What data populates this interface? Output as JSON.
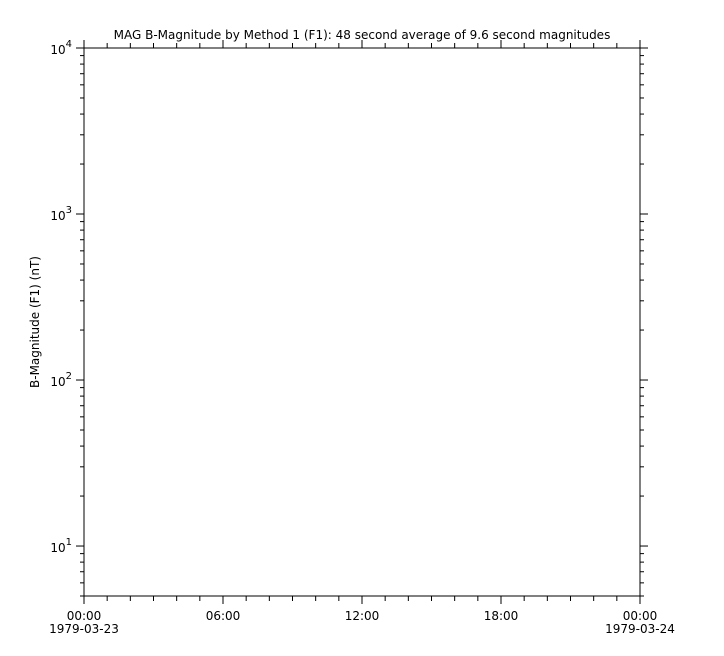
{
  "chart_data": {
    "type": "line",
    "title": "MAG  B-Magnitude by Method 1 (F1): 48 second average of 9.6 second magnitudes",
    "ylabel": "B-Magnitude (F1) (nT)",
    "xlabel": "",
    "yscale": "log",
    "ylim": [
      5,
      10000
    ],
    "xlim": [
      "1979-03-23T00:00",
      "1979-03-24T00:00"
    ],
    "y_ticks": [
      {
        "value": 10,
        "base": "10",
        "exp": "1"
      },
      {
        "value": 100,
        "base": "10",
        "exp": "2"
      },
      {
        "value": 1000,
        "base": "10",
        "exp": "3"
      },
      {
        "value": 10000,
        "base": "10",
        "exp": "4"
      }
    ],
    "x_ticks": [
      {
        "hour": 0,
        "time": "00:00",
        "date": "1979-03-23"
      },
      {
        "hour": 6,
        "time": "06:00",
        "date": ""
      },
      {
        "hour": 12,
        "time": "12:00",
        "date": ""
      },
      {
        "hour": 18,
        "time": "18:00",
        "date": ""
      },
      {
        "hour": 24,
        "time": "00:00",
        "date": "1979-03-24"
      }
    ],
    "x_minor_tick_step_hours": 1,
    "grid": false,
    "series": []
  }
}
